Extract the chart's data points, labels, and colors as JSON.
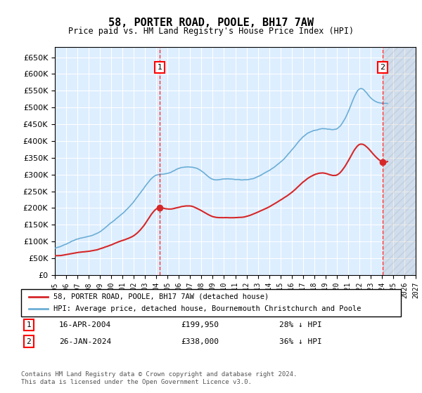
{
  "title": "58, PORTER ROAD, POOLE, BH17 7AW",
  "subtitle": "Price paid vs. HM Land Registry's House Price Index (HPI)",
  "legend_line1": "58, PORTER ROAD, POOLE, BH17 7AW (detached house)",
  "legend_line2": "HPI: Average price, detached house, Bournemouth Christchurch and Poole",
  "transaction1_label": "1",
  "transaction1_date": "16-APR-2004",
  "transaction1_price": "£199,950",
  "transaction1_hpi": "28% ↓ HPI",
  "transaction2_label": "2",
  "transaction2_date": "26-JAN-2024",
  "transaction2_price": "£338,000",
  "transaction2_hpi": "36% ↓ HPI",
  "footnote": "Contains HM Land Registry data © Crown copyright and database right 2024.\nThis data is licensed under the Open Government Licence v3.0.",
  "hpi_color": "#6baed6",
  "price_color": "#d62728",
  "background_color": "#ddeeff",
  "plot_bg_color": "#ddeeff",
  "transaction1_x": 2004.29,
  "transaction2_x": 2024.07,
  "transaction1_y": 199950,
  "transaction2_y": 338000,
  "ylim": [
    0,
    680000
  ],
  "xlim_start": 1995,
  "xlim_end": 2027,
  "yticks": [
    0,
    50000,
    100000,
    150000,
    200000,
    250000,
    300000,
    350000,
    400000,
    450000,
    500000,
    550000,
    600000,
    650000
  ],
  "xticks": [
    1995,
    1996,
    1997,
    1998,
    1999,
    2000,
    2001,
    2002,
    2003,
    2004,
    2005,
    2006,
    2007,
    2008,
    2009,
    2010,
    2011,
    2012,
    2013,
    2014,
    2015,
    2016,
    2017,
    2018,
    2019,
    2020,
    2021,
    2022,
    2023,
    2024,
    2025,
    2026,
    2027
  ]
}
